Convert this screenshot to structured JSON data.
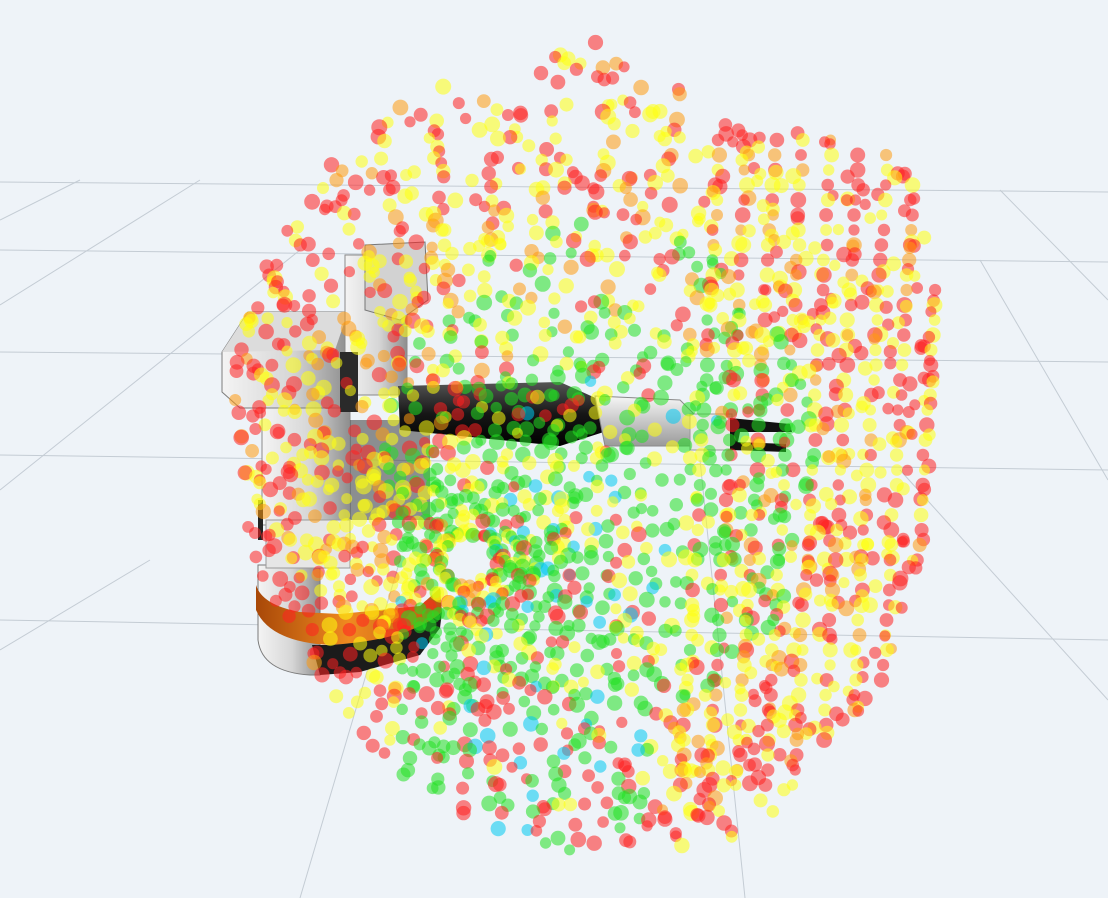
{
  "viewer": {
    "background_color": "#eef3f8",
    "grid_color": "#c4ccd4",
    "grid_visible": true
  },
  "robot": {
    "description_icon": "robot-arm-icon",
    "body_color": "#d8d8d8",
    "body_shade_color": "#8c8c8c",
    "joint_color": "#1a1a1a",
    "base_ring_color": "#e07818",
    "gripper_color": "#111111"
  },
  "reachability_markers": {
    "shape": "sphere",
    "opacity": 0.55,
    "color_scale": [
      {
        "level": "high",
        "color": "#00c8f0"
      },
      {
        "level": "good",
        "color": "#22e022"
      },
      {
        "level": "medium",
        "color": "#ffff10"
      },
      {
        "level": "low",
        "color": "#ff9a10"
      },
      {
        "level": "poor",
        "color": "#ff2020"
      }
    ]
  }
}
